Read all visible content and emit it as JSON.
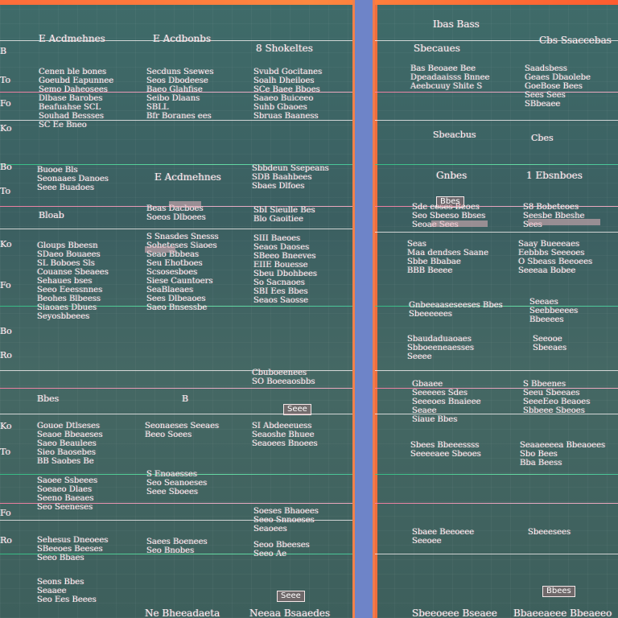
{
  "left_table": {
    "header": {
      "col1": "E Acdmehnes",
      "col2": "E Acdbonbs",
      "col3": "8 Shokeltes"
    },
    "row_labels": [
      "B",
      "To",
      "Fo",
      "Ko",
      "Bo",
      "To",
      "Ko",
      "Fo",
      "Bo",
      "Ro",
      "Ko",
      "To",
      "Fo",
      "Ro"
    ],
    "rows": [
      {
        "c1": "Cenen ble bones\nGoeubd Eapunnee\nSemo Daheosees\nDlbase Barobes\nBeafuahse SCL\nSouhad Bessses\nSC Ee Bneo",
        "c2": "Secduns Ssewes\nSeos Dbodeese\nBaeo Glahfise\nSeibo Dlaans\nSBLL\nBfr Boranes ees",
        "c3": "Svubd Gocitanes\nSoalh Dheiloes\nSCe Baee Bboes\nSaaeo Buiceeo\nSuhb Gbaoes\nSbruas Baaness"
      },
      {
        "c1": "Buooe Bls\nSeonaaes Danoes\nSeee Buadoes",
        "c2": "E Acdmehnes",
        "c3": "Sbbdeun Ssepeans\nSDB Baahbees\nSbaes Dlfoes"
      },
      {
        "c1": "Bloab",
        "c2": "Beas Dacboes\nSoeos Dlboees",
        "c3": "SbI Sieulle Bes\nBlo Gaoitiee"
      },
      {
        "c1": "Gloups Bbeesn\nSDaeo Bouaees\nSL Boboes Sls\nCouanse Sbeaees\nSehaues bses\nSeeo Eeessnnes\nBeohes Blbeess\nSiaoaes Dbues\nSeyosbbeees",
        "c2": "S Snasdes Snesss\nSoheteses Siaoes\nSeao Bbbeas\nSeu Ehotboes\nScsosesboes\nSiese Cauntoers\nSeaBlaeaes\nSees Dlbeaoes\nSaeo Bnsessbe",
        "c3": "SIII Baeoes\nSeaos Daoses\nSBeeo Bneeves\nEIIE Bouesse\nSbeu Dbohbees\nSo Sacnaoes\nSBI Ees Bbes\nSeaos Saosse"
      },
      {
        "c1": "Bbes",
        "c2": "B",
        "c3": "Cbuboeenees\nSO Boeeaosbbs"
      },
      {
        "c1": "Gouoe Dtlseses\nSeaoe Bbeaeses\nSaeo Beaulees\nSieo Baosebes\nBB Saobes Be",
        "c2": "Seonaeses Seeaes\nBeeo Soees",
        "c3": "SI Abdeeeuess\nSeaoshe Bhuee\nSeaoees Bnoees"
      },
      {
        "c1": "Saoee Ssbeees\nSoeaeo Dlaes\nSeeno Baeaes\nSeo Seeneses",
        "c2": "S Enoaesses\nSeo Seanoeses\nSeee Sboees",
        "c3": "Soeses Bhaoees\nSeeo Snnoeses\nSeaoees"
      },
      {
        "c1": "Sehesus Dneoees\nSBeeoes Beeses\nSeeo Bbaes",
        "c2": "Saees Boenees\nSeo Bnobes",
        "c3": "Seoo Bbeeses\nSeeo Ae"
      },
      {
        "c1": "Seons Bbes\nSeaaee\nSeo Ees Beees",
        "c2": "Ne Bheeadaeta",
        "c3": "Neeaa Bsaaedes"
      }
    ]
  },
  "right_table": {
    "header": {
      "title": "Ibas Bass",
      "col1": "Sbecaues",
      "col2": "Cbs Ssaccebas"
    },
    "rows": [
      {
        "c1": "Bas Beoaee Bee\nDpeadaaisss Bnnee\nAeebcuuy Shite S",
        "c2": "Saadsbess\nGeaes Dbaolebe\nGoeBose Bees\nSees Sees\nSBbeaee"
      },
      {
        "c1": "Sbeacbus",
        "c2": "Cbes"
      },
      {
        "c1": "Gnbes",
        "c2": "1 Ebsnboes"
      },
      {
        "c1": "Sde eeses Beoes\nSeo Sbeeso Bbses\nSeoae Sees",
        "c2": "S8 Bobeteoes\nSeesbe Bbeshe\nSees"
      },
      {
        "c1": "Seas\nMaa dendses Saane\nSbbe Bbabae\nBBB Beeee",
        "c2": "Saay Bueeeaes\nEebbbs Seeeoes\nO Sbeass Beeoees\nSeeeaa Bobee"
      },
      {
        "c1": "Gnbeeaaseseeses Bbes\nSbeeeeees",
        "c2": "Seeaes\nSeebbeeees\nBbeeees"
      },
      {
        "c1": "Sbaudaduaoaes\nSbboeeneaesses\nSeeee",
        "c2": "Seeooe\nSbeeaes"
      },
      {
        "c1": "Gbaaee\nSeeeees Sdes\nSeeeoes Bnaieee\nSeaee\nSiaue Bbes",
        "c2": "S Bbeenes\nSeeu Sbeeaes\nSeeeEeo Beaoes\nSbbeee Sbeoes"
      },
      {
        "c1": "Sbees Bbeeessss\nSeeeeaee Sbeoes",
        "c2": "Seaaeeeea Bbeaoees\nSbo Bees\nBba Beess"
      },
      {
        "c1": "Sbaee Beeoeee\nSeeoee",
        "c2": "Sbeeesees"
      },
      {
        "c1": "Sbeeoeee Bseaee",
        "c2": "Bbaeeaeee Bbeaeeo"
      }
    ]
  },
  "tags": {
    "left_tag_1": "Seee",
    "left_tag_2": "Seee",
    "right_tag_1": "Bbes",
    "right_tag_2": "Bbees"
  }
}
